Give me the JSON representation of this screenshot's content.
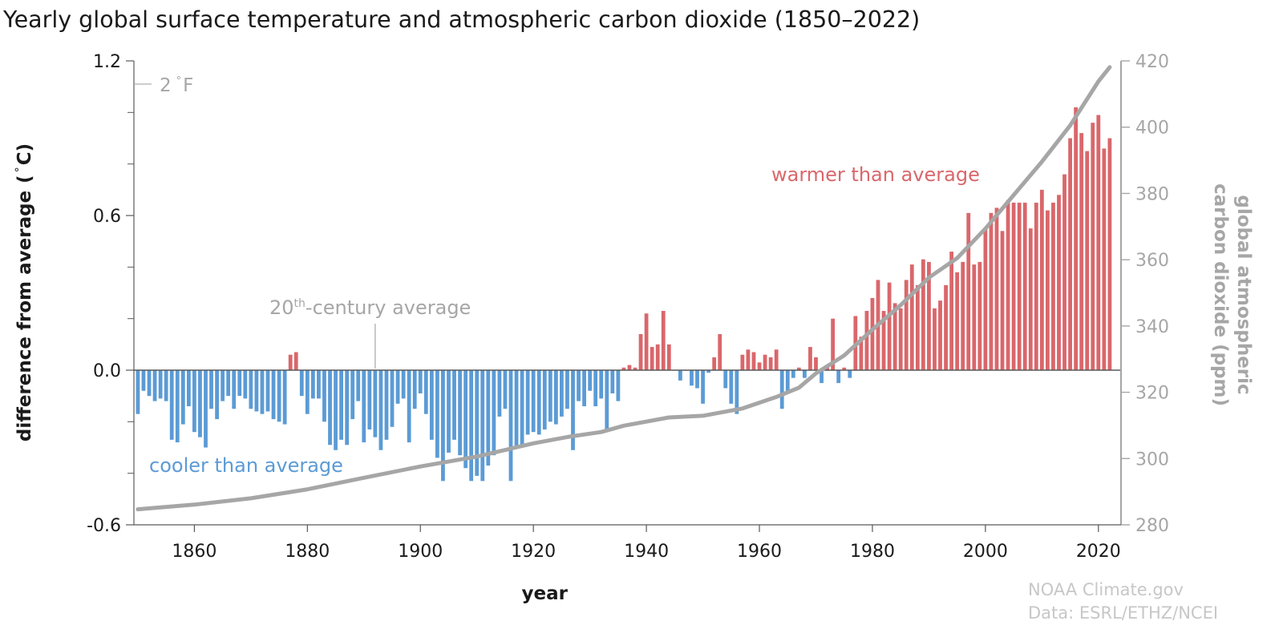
{
  "chart_data": {
    "type": "bar",
    "title": "Yearly global surface temperature and atmospheric carbon dioxide (1850–2022)",
    "xlabel": "year",
    "ylabel": "difference from average (°C)",
    "ylabel_parts": {
      "text": "difference from average",
      "open_paren": "(",
      "degree": "°",
      "unit": "C)"
    },
    "y2label": "global atmospheric carbon dioxide (ppm)",
    "y2label_lines": [
      "global atmospheric",
      "carbon dioxide (ppm)"
    ],
    "xlim": [
      1849.3,
      2024
    ],
    "ylim": [
      -0.6,
      1.2
    ],
    "y2lim": [
      280,
      420
    ],
    "x_ticks": [
      1860,
      1880,
      1900,
      1920,
      1940,
      1960,
      1980,
      2000,
      2020
    ],
    "y_ticks": [
      "1.2",
      "0.6",
      "0.0",
      "-0.6"
    ],
    "y_ticks_values": [
      1.2,
      0.6,
      0.0,
      -0.6
    ],
    "y_minor_ticks": [
      1.0,
      0.8,
      0.4,
      0.2,
      -0.2,
      -0.4
    ],
    "y2_ticks": [
      420,
      400,
      380,
      360,
      340,
      320,
      300,
      280
    ],
    "fahrenheit_marker": {
      "label": "2",
      "degree": "°",
      "unit": "F",
      "value_c": 1.11
    },
    "annotations": {
      "warmer": "warmer than average",
      "cooler": "cooler than average",
      "century_avg": {
        "base": "20",
        "superscript": "th",
        "rest": "-century average",
        "pointer_year": 1892
      }
    },
    "credit": {
      "line1": "NOAA Climate.gov",
      "line2": "Data: ESRL/ETHZ/NCEI"
    },
    "colors": {
      "warm": "#d9676b",
      "cool": "#5b9bd5",
      "co2": "#a6a6a6",
      "axis": "#595959",
      "annotation": "#a6a6a6",
      "text": "#1a1a1a"
    },
    "series": [
      {
        "name": "temperature anomaly (°C)",
        "years_start": 1850,
        "values": [
          -0.17,
          -0.08,
          -0.1,
          -0.12,
          -0.11,
          -0.12,
          -0.27,
          -0.28,
          -0.21,
          -0.14,
          -0.24,
          -0.26,
          -0.3,
          -0.15,
          -0.19,
          -0.12,
          -0.1,
          -0.15,
          -0.1,
          -0.11,
          -0.15,
          -0.16,
          -0.17,
          -0.16,
          -0.19,
          -0.2,
          -0.21,
          0.06,
          0.07,
          -0.1,
          -0.17,
          -0.11,
          -0.11,
          -0.2,
          -0.29,
          -0.31,
          -0.27,
          -0.29,
          -0.19,
          -0.12,
          -0.28,
          -0.23,
          -0.26,
          -0.31,
          -0.27,
          -0.22,
          -0.13,
          -0.11,
          -0.28,
          -0.15,
          -0.09,
          -0.17,
          -0.27,
          -0.34,
          -0.43,
          -0.32,
          -0.27,
          -0.33,
          -0.38,
          -0.43,
          -0.41,
          -0.43,
          -0.37,
          -0.33,
          -0.18,
          -0.15,
          -0.43,
          -0.3,
          -0.29,
          -0.25,
          -0.24,
          -0.25,
          -0.23,
          -0.2,
          -0.21,
          -0.18,
          -0.15,
          -0.31,
          -0.12,
          -0.14,
          -0.08,
          -0.14,
          -0.11,
          -0.23,
          -0.09,
          -0.12,
          0.01,
          0.02,
          0.01,
          0.14,
          0.22,
          0.09,
          0.1,
          0.23,
          0.1,
          0.0,
          -0.04,
          0.0,
          -0.06,
          -0.07,
          -0.13,
          -0.01,
          0.05,
          0.14,
          -0.07,
          -0.13,
          -0.17,
          0.06,
          0.08,
          0.07,
          0.03,
          0.06,
          0.05,
          0.08,
          -0.15,
          -0.08,
          -0.03,
          0.01,
          -0.03,
          0.09,
          0.05,
          -0.05,
          0.02,
          0.2,
          -0.05,
          0.01,
          -0.03,
          0.21,
          0.13,
          0.23,
          0.28,
          0.35,
          0.23,
          0.34,
          0.26,
          0.24,
          0.35,
          0.41,
          0.33,
          0.43,
          0.42,
          0.24,
          0.27,
          0.33,
          0.46,
          0.38,
          0.42,
          0.61,
          0.41,
          0.42,
          0.55,
          0.61,
          0.63,
          0.54,
          0.66,
          0.65,
          0.65,
          0.65,
          0.55,
          0.65,
          0.7,
          0.62,
          0.65,
          0.68,
          0.76,
          0.9,
          1.02,
          0.92,
          0.85,
          0.96,
          0.99,
          0.86,
          0.9
        ]
      },
      {
        "name": "global atmospheric carbon dioxide (ppm)",
        "type": "line",
        "years": [
          1850,
          1860,
          1870,
          1880,
          1890,
          1900,
          1910,
          1920,
          1926,
          1932,
          1936,
          1944,
          1950,
          1957,
          1963,
          1967,
          1970,
          1975,
          1980,
          1985,
          1990,
          1995,
          2000,
          2005,
          2010,
          2015,
          2020,
          2022
        ],
        "values": [
          284.7,
          286.1,
          288.0,
          290.7,
          294.2,
          297.6,
          300.6,
          304.6,
          306.5,
          308.0,
          309.9,
          312.4,
          312.9,
          315.1,
          318.6,
          321.4,
          325.7,
          331.1,
          338.9,
          346.3,
          354.6,
          360.5,
          369.4,
          379.5,
          389.6,
          400.5,
          413.8,
          418.1
        ]
      }
    ]
  }
}
